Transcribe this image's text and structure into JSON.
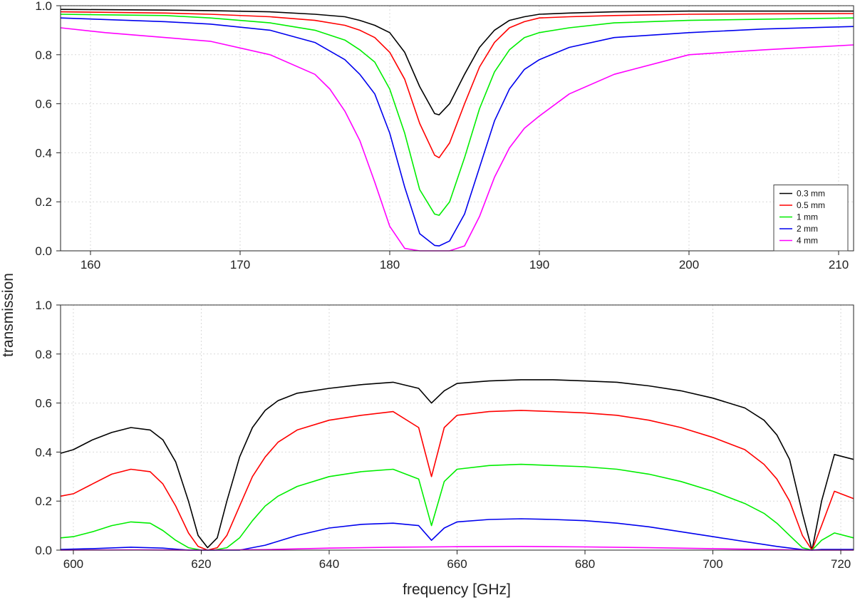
{
  "chart_data": [
    {
      "type": "line",
      "panel": "top",
      "title": "",
      "xlabel": "",
      "ylabel": "transmission",
      "xlim": [
        158,
        211
      ],
      "ylim": [
        0,
        1
      ],
      "xticks": [
        "160",
        "170",
        "180",
        "190",
        "200",
        "210"
      ],
      "yticks": [
        "0.0",
        "0.2",
        "0.4",
        "0.6",
        "0.8",
        "1.0"
      ],
      "grid": true,
      "legend": {
        "position": "bottom-right",
        "entries": [
          "0.3 mm",
          "0.5 mm",
          "1 mm",
          "2 mm",
          "4 mm"
        ]
      },
      "series": [
        {
          "name": "0.3 mm",
          "color": "#000000",
          "x": [
            158,
            165,
            168,
            172,
            175,
            177,
            178,
            179,
            180,
            181,
            182,
            183,
            183.3,
            184,
            185,
            186,
            187,
            188,
            189,
            190,
            192,
            195,
            200,
            205,
            211
          ],
          "y": [
            0.985,
            0.982,
            0.98,
            0.975,
            0.965,
            0.955,
            0.94,
            0.92,
            0.89,
            0.81,
            0.67,
            0.56,
            0.555,
            0.6,
            0.72,
            0.83,
            0.9,
            0.94,
            0.955,
            0.965,
            0.97,
            0.975,
            0.978,
            0.978,
            0.978
          ]
        },
        {
          "name": "0.5 mm",
          "color": "#ff0000",
          "x": [
            158,
            165,
            168,
            172,
            175,
            177,
            178,
            179,
            180,
            181,
            182,
            183,
            183.3,
            184,
            185,
            186,
            187,
            188,
            189,
            190,
            192,
            195,
            200,
            205,
            211
          ],
          "y": [
            0.975,
            0.97,
            0.965,
            0.955,
            0.94,
            0.92,
            0.9,
            0.87,
            0.81,
            0.7,
            0.52,
            0.39,
            0.38,
            0.44,
            0.6,
            0.75,
            0.85,
            0.91,
            0.935,
            0.95,
            0.955,
            0.96,
            0.965,
            0.967,
            0.968
          ]
        },
        {
          "name": "1 mm",
          "color": "#00ee00",
          "x": [
            158,
            165,
            168,
            172,
            175,
            177,
            178,
            179,
            180,
            181,
            182,
            183,
            183.3,
            184,
            185,
            186,
            187,
            188,
            189,
            190,
            192,
            195,
            200,
            205,
            211
          ],
          "y": [
            0.965,
            0.96,
            0.95,
            0.93,
            0.9,
            0.86,
            0.82,
            0.77,
            0.66,
            0.48,
            0.25,
            0.15,
            0.145,
            0.2,
            0.38,
            0.58,
            0.73,
            0.82,
            0.87,
            0.89,
            0.91,
            0.93,
            0.94,
            0.945,
            0.95
          ]
        },
        {
          "name": "2 mm",
          "color": "#0000ee",
          "x": [
            158,
            165,
            168,
            172,
            175,
            177,
            178,
            179,
            180,
            181,
            182,
            183,
            183.3,
            184,
            185,
            186,
            187,
            188,
            189,
            190,
            192,
            195,
            200,
            205,
            211
          ],
          "y": [
            0.95,
            0.935,
            0.925,
            0.9,
            0.85,
            0.78,
            0.72,
            0.64,
            0.48,
            0.26,
            0.07,
            0.022,
            0.02,
            0.04,
            0.15,
            0.34,
            0.53,
            0.66,
            0.74,
            0.78,
            0.83,
            0.87,
            0.89,
            0.905,
            0.915
          ]
        },
        {
          "name": "4 mm",
          "color": "#ff00ff",
          "x": [
            158,
            161,
            165,
            168,
            172,
            175,
            176,
            177,
            178,
            179,
            180,
            181,
            182,
            183,
            184,
            185,
            186,
            187,
            188,
            189,
            190,
            192,
            195,
            200,
            205,
            211
          ],
          "y": [
            0.91,
            0.89,
            0.87,
            0.855,
            0.8,
            0.72,
            0.66,
            0.57,
            0.45,
            0.28,
            0.1,
            0.01,
            0.0,
            0.0,
            0.0,
            0.02,
            0.14,
            0.3,
            0.42,
            0.5,
            0.55,
            0.64,
            0.72,
            0.8,
            0.82,
            0.84
          ]
        }
      ]
    },
    {
      "type": "line",
      "panel": "bottom",
      "title": "",
      "xlabel": "frequency [GHz]",
      "ylabel": "transmission",
      "xlim": [
        598,
        722
      ],
      "ylim": [
        0,
        1
      ],
      "xticks": [
        "600",
        "620",
        "640",
        "660",
        "680",
        "700",
        "720"
      ],
      "yticks": [
        "0.0",
        "0.2",
        "0.4",
        "0.6",
        "0.8",
        "1.0"
      ],
      "grid": true,
      "series": [
        {
          "name": "0.3 mm",
          "color": "#000000",
          "x": [
            598,
            600,
            603,
            606,
            609,
            612,
            614,
            616,
            618,
            619.5,
            621,
            622.5,
            624,
            626,
            628,
            630,
            632,
            635,
            640,
            645,
            650,
            654,
            656,
            658,
            660,
            665,
            670,
            675,
            680,
            685,
            690,
            695,
            700,
            705,
            708,
            710,
            712,
            714,
            715.5,
            717,
            719,
            722
          ],
          "y": [
            0.395,
            0.41,
            0.45,
            0.48,
            0.5,
            0.49,
            0.45,
            0.36,
            0.2,
            0.06,
            0.01,
            0.05,
            0.2,
            0.38,
            0.5,
            0.57,
            0.61,
            0.64,
            0.66,
            0.675,
            0.685,
            0.66,
            0.6,
            0.65,
            0.68,
            0.69,
            0.695,
            0.695,
            0.69,
            0.685,
            0.67,
            0.65,
            0.62,
            0.58,
            0.53,
            0.47,
            0.37,
            0.15,
            0.0,
            0.2,
            0.39,
            0.37
          ]
        },
        {
          "name": "0.5 mm",
          "color": "#ff0000",
          "x": [
            598,
            600,
            603,
            606,
            609,
            612,
            614,
            616,
            618,
            619.5,
            621,
            622.5,
            624,
            626,
            628,
            630,
            632,
            635,
            640,
            645,
            650,
            654,
            656,
            658,
            660,
            665,
            670,
            675,
            680,
            685,
            690,
            695,
            700,
            705,
            708,
            710,
            712,
            714,
            715.5,
            717,
            719,
            722
          ],
          "y": [
            0.22,
            0.23,
            0.27,
            0.31,
            0.33,
            0.32,
            0.27,
            0.18,
            0.07,
            0.015,
            0.0,
            0.01,
            0.06,
            0.18,
            0.3,
            0.38,
            0.44,
            0.49,
            0.53,
            0.55,
            0.565,
            0.5,
            0.3,
            0.5,
            0.55,
            0.565,
            0.57,
            0.565,
            0.56,
            0.55,
            0.53,
            0.5,
            0.46,
            0.41,
            0.35,
            0.29,
            0.2,
            0.06,
            0.0,
            0.1,
            0.24,
            0.21
          ]
        },
        {
          "name": "1 mm",
          "color": "#00ee00",
          "x": [
            598,
            600,
            603,
            606,
            609,
            612,
            614,
            616,
            618,
            620,
            622,
            624,
            626,
            628,
            630,
            632,
            635,
            640,
            645,
            650,
            654,
            656,
            658,
            660,
            665,
            670,
            675,
            680,
            685,
            690,
            695,
            700,
            705,
            708,
            710,
            712,
            714,
            715.5,
            717,
            719,
            722
          ],
          "y": [
            0.05,
            0.055,
            0.075,
            0.1,
            0.115,
            0.11,
            0.08,
            0.04,
            0.01,
            0.0,
            0.0,
            0.01,
            0.05,
            0.12,
            0.18,
            0.22,
            0.26,
            0.3,
            0.32,
            0.33,
            0.29,
            0.1,
            0.28,
            0.33,
            0.345,
            0.35,
            0.345,
            0.34,
            0.33,
            0.31,
            0.28,
            0.24,
            0.19,
            0.15,
            0.11,
            0.06,
            0.01,
            0.0,
            0.04,
            0.07,
            0.05
          ]
        },
        {
          "name": "2 mm",
          "color": "#0000ee",
          "x": [
            598,
            603,
            609,
            614,
            618,
            622,
            626,
            630,
            635,
            640,
            645,
            650,
            654,
            656,
            658,
            660,
            665,
            670,
            675,
            680,
            685,
            690,
            695,
            700,
            705,
            710,
            714,
            715.5,
            717,
            722
          ],
          "y": [
            0.003,
            0.006,
            0.012,
            0.008,
            0.0,
            0.0,
            0.0,
            0.02,
            0.06,
            0.09,
            0.105,
            0.11,
            0.1,
            0.04,
            0.09,
            0.115,
            0.125,
            0.128,
            0.125,
            0.12,
            0.11,
            0.095,
            0.075,
            0.055,
            0.035,
            0.015,
            0.002,
            0.0,
            0.003,
            0.003
          ]
        },
        {
          "name": "4 mm",
          "color": "#ff00ff",
          "x": [
            598,
            610,
            620,
            630,
            640,
            650,
            660,
            670,
            680,
            690,
            700,
            710,
            715,
            722
          ],
          "y": [
            0.0,
            0.001,
            0.0,
            0.002,
            0.008,
            0.012,
            0.014,
            0.015,
            0.013,
            0.01,
            0.006,
            0.002,
            0.0,
            0.0
          ]
        }
      ]
    }
  ]
}
